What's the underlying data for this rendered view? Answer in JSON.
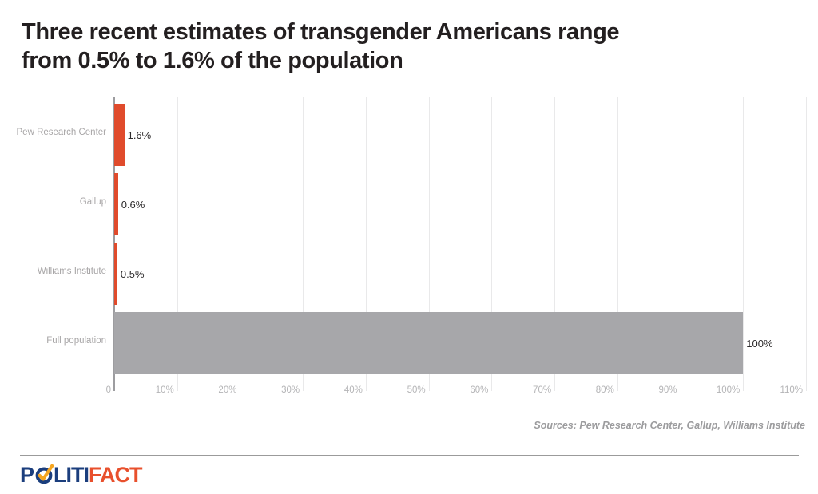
{
  "header": {
    "title_line1": "Three recent estimates of transgender Americans range",
    "title_line2": "from 0.5% to 1.6% of the population"
  },
  "chart_data": {
    "type": "bar",
    "orientation": "horizontal",
    "title": "Three recent estimates of transgender Americans range from 0.5% to 1.6% of the population",
    "categories": [
      "Pew Research Center",
      "Gallup",
      "Williams Institute",
      "Full population"
    ],
    "values": [
      1.6,
      0.6,
      0.5,
      100
    ],
    "value_labels": [
      "1.6%",
      "0.6%",
      "0.5%",
      "100%"
    ],
    "bar_colors": [
      "#e04b2c",
      "#e04b2c",
      "#e04b2c",
      "#a7a7aa"
    ],
    "xlim": [
      0,
      110
    ],
    "x_tick_values": [
      0,
      10,
      20,
      30,
      40,
      50,
      60,
      70,
      80,
      90,
      100,
      110
    ],
    "x_tick_labels": [
      "0",
      "10%",
      "20%",
      "30%",
      "40%",
      "50%",
      "60%",
      "70%",
      "80%",
      "90%",
      "100%",
      "110%"
    ],
    "grid": true,
    "legend": "none",
    "xlabel": "",
    "ylabel": ""
  },
  "footer": {
    "sources": "Sources: Pew Research Center, Gallup, Williams Institute",
    "logo": {
      "p": "P",
      "liti": "LITI",
      "fact": "FACT"
    }
  },
  "colors": {
    "accent_orange": "#e04b2c",
    "bar_gray": "#a7a7aa",
    "category_label_gray": "#a8a6a7",
    "tick_gray": "#b4b4b6",
    "value_text": "#2c2a2b",
    "title_text": "#231f20",
    "logo_blue": "#1b3e7d",
    "logo_check_gold": "#f6a620",
    "logo_fact_red": "#e8502d"
  }
}
